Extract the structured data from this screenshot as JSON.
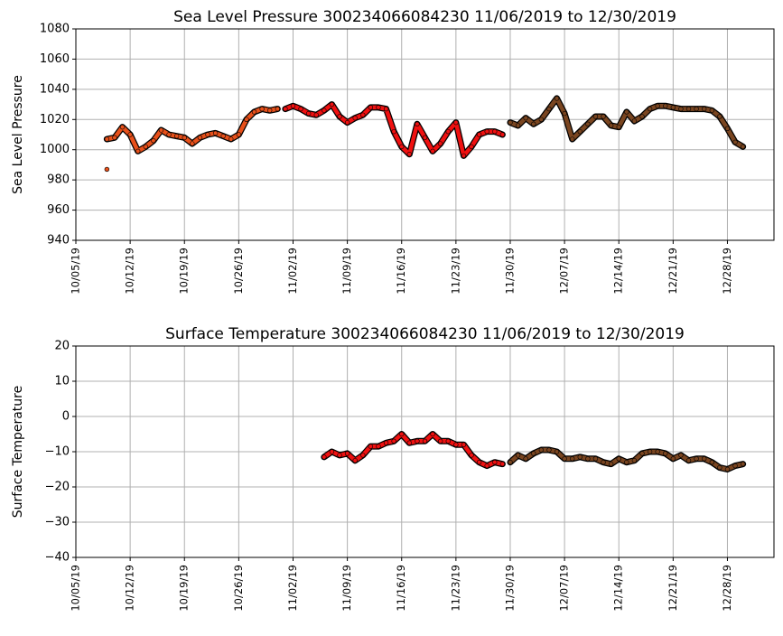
{
  "chart_data": [
    {
      "type": "scatter",
      "title": "Sea Level Pressure 300234066084230  11/06/2019 to 12/30/2019",
      "y_label": "Sea Level Pressure",
      "xlim": [
        "10/05/19",
        "01/03/20"
      ],
      "xticks": [
        "10/05/19",
        "10/12/19",
        "10/19/19",
        "10/26/19",
        "11/02/19",
        "11/09/19",
        "11/16/19",
        "11/23/19",
        "11/30/19",
        "12/07/19",
        "12/14/19",
        "12/21/19",
        "12/28/19"
      ],
      "ylim": [
        940,
        1080
      ],
      "yticks": [
        940,
        960,
        980,
        1000,
        1020,
        1040,
        1060,
        1080
      ],
      "grid": true,
      "series": [
        {
          "color": "#e8501a",
          "x": [
            "10/09/19"
          ],
          "values": [
            987
          ]
        },
        {
          "color": "#e8501a",
          "x": [
            "10/09/19",
            "10/10/19",
            "10/11/19",
            "10/12/19",
            "10/13/19",
            "10/14/19",
            "10/15/19",
            "10/16/19",
            "10/17/19",
            "10/18/19",
            "10/19/19",
            "10/20/19",
            "10/21/19",
            "10/22/19",
            "10/23/19",
            "10/24/19",
            "10/25/19",
            "10/26/19",
            "10/27/19",
            "10/28/19",
            "10/29/19",
            "10/30/19",
            "10/31/19"
          ],
          "values": [
            1007,
            1008,
            1015,
            1010,
            999,
            1002,
            1006,
            1013,
            1010,
            1009,
            1008,
            1004,
            1008,
            1010,
            1011,
            1009,
            1007,
            1010,
            1020,
            1025,
            1027,
            1026,
            1027
          ]
        },
        {
          "color": "#f01010",
          "x": [
            "11/01/19",
            "11/02/19",
            "11/03/19",
            "11/04/19",
            "11/05/19",
            "11/06/19",
            "11/07/19",
            "11/08/19",
            "11/09/19",
            "11/10/19",
            "11/11/19",
            "11/12/19",
            "11/13/19",
            "11/14/19",
            "11/15/19",
            "11/16/19",
            "11/17/19",
            "11/18/19",
            "11/19/19",
            "11/20/19",
            "11/21/19",
            "11/22/19",
            "11/23/19",
            "11/24/19",
            "11/25/19",
            "11/26/19",
            "11/27/19",
            "11/28/19",
            "11/29/19"
          ],
          "values": [
            1027,
            1029,
            1027,
            1024,
            1023,
            1026,
            1030,
            1022,
            1018,
            1021,
            1023,
            1028,
            1028,
            1027,
            1012,
            1002,
            997,
            1017,
            1008,
            999,
            1004,
            1012,
            1018,
            996,
            1002,
            1010,
            1012,
            1012,
            1010
          ]
        },
        {
          "color": "#7a4520",
          "x": [
            "11/30/19",
            "12/01/19",
            "12/02/19",
            "12/03/19",
            "12/04/19",
            "12/05/19",
            "12/06/19",
            "12/07/19",
            "12/08/19",
            "12/09/19",
            "12/10/19",
            "12/11/19",
            "12/12/19",
            "12/13/19",
            "12/14/19",
            "12/15/19",
            "12/16/19",
            "12/17/19",
            "12/18/19",
            "12/19/19",
            "12/20/19",
            "12/21/19",
            "12/22/19",
            "12/23/19",
            "12/24/19",
            "12/25/19",
            "12/26/19",
            "12/27/19",
            "12/28/19",
            "12/29/19",
            "12/30/19"
          ],
          "values": [
            1018,
            1016,
            1021,
            1017,
            1020,
            1027,
            1034,
            1024,
            1007,
            1012,
            1017,
            1022,
            1022,
            1016,
            1015,
            1025,
            1019,
            1022,
            1027,
            1029,
            1029,
            1028,
            1027,
            1027,
            1027,
            1027,
            1026,
            1022,
            1014,
            1005,
            1002
          ]
        }
      ]
    },
    {
      "type": "scatter",
      "title": "Surface Temperature 300234066084230  11/06/2019 to 12/30/2019",
      "y_label": "Surface Temperature",
      "xlim": [
        "10/05/19",
        "01/03/20"
      ],
      "xticks": [
        "10/05/19",
        "10/12/19",
        "10/19/19",
        "10/26/19",
        "11/02/19",
        "11/09/19",
        "11/16/19",
        "11/23/19",
        "11/30/19",
        "12/07/19",
        "12/14/19",
        "12/21/19",
        "12/28/19"
      ],
      "ylim": [
        -40,
        20
      ],
      "yticks": [
        {
          "value": -40,
          "label": "−40"
        },
        {
          "value": -30,
          "label": "−30"
        },
        {
          "value": -20,
          "label": "−20"
        },
        {
          "value": -10,
          "label": "−10"
        },
        0,
        10,
        20
      ],
      "grid": true,
      "series": [
        {
          "color": "#f01010",
          "x": [
            "11/06/19",
            "11/07/19",
            "11/08/19",
            "11/09/19",
            "11/10/19",
            "11/11/19",
            "11/12/19",
            "11/13/19",
            "11/14/19",
            "11/15/19",
            "11/16/19",
            "11/17/19",
            "11/18/19",
            "11/19/19",
            "11/20/19",
            "11/21/19",
            "11/22/19",
            "11/23/19",
            "11/24/19",
            "11/25/19",
            "11/26/19",
            "11/27/19",
            "11/28/19",
            "11/29/19"
          ],
          "values": [
            -11.5,
            -10,
            -11,
            -10.5,
            -12.5,
            -11,
            -8.5,
            -8.5,
            -7.5,
            -7,
            -5,
            -7.5,
            -7,
            -7,
            -5,
            -7,
            -7,
            -8,
            -8,
            -11,
            -13,
            -14,
            -13,
            -13.5
          ]
        },
        {
          "color": "#7a4520",
          "x": [
            "11/30/19",
            "12/01/19",
            "12/02/19",
            "12/03/19",
            "12/04/19",
            "12/05/19",
            "12/06/19",
            "12/07/19",
            "12/08/19",
            "12/09/19",
            "12/10/19",
            "12/11/19",
            "12/12/19",
            "12/13/19",
            "12/14/19",
            "12/15/19",
            "12/16/19",
            "12/17/19",
            "12/18/19",
            "12/19/19",
            "12/20/19",
            "12/21/19",
            "12/22/19",
            "12/23/19",
            "12/24/19",
            "12/25/19",
            "12/26/19",
            "12/27/19",
            "12/28/19",
            "12/29/19",
            "12/30/19"
          ],
          "values": [
            -13,
            -11,
            -12,
            -10.5,
            -9.5,
            -9.5,
            -10,
            -12,
            -12,
            -11.5,
            -12,
            -12,
            -13,
            -13.5,
            -12,
            -13,
            -12.5,
            -10.5,
            -10,
            -10,
            -10.5,
            -12,
            -11,
            -12.5,
            -12,
            -12,
            -13,
            -14.5,
            -15,
            -14,
            -13.5
          ]
        }
      ]
    }
  ]
}
